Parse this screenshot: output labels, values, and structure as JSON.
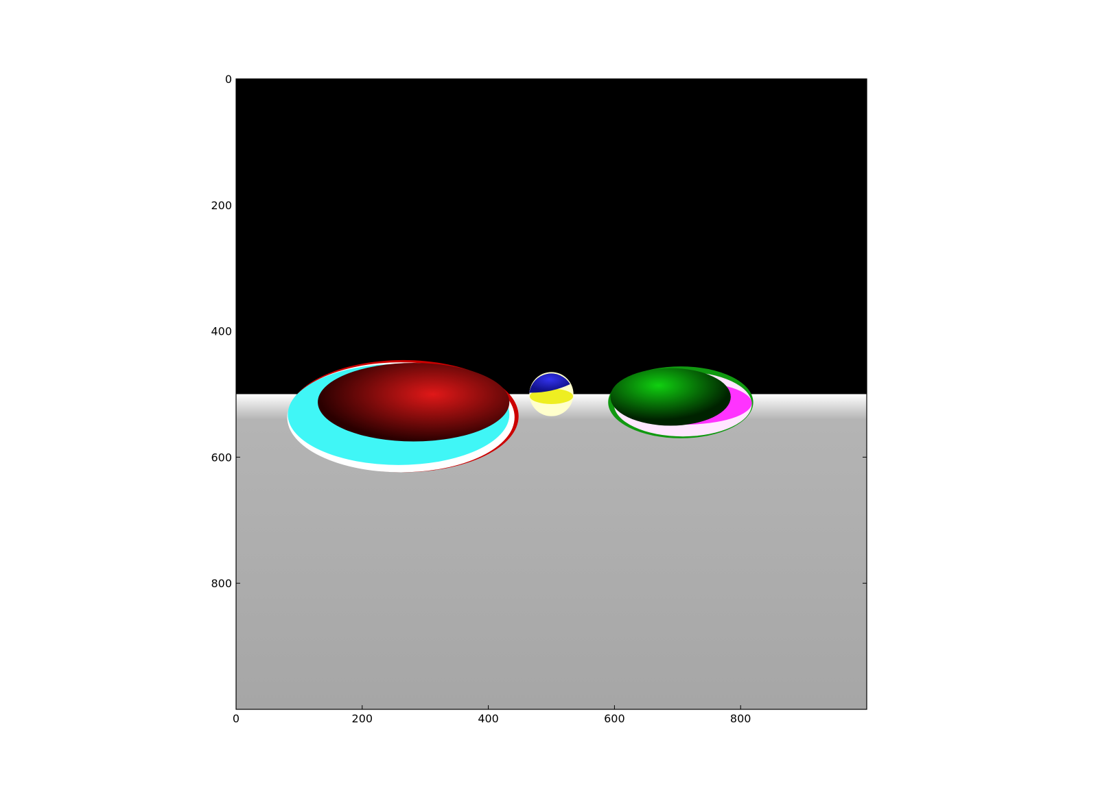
{
  "chart_data": {
    "type": "heatmap",
    "title": "",
    "xlabel": "",
    "ylabel": "",
    "xlim": [
      0,
      1000
    ],
    "ylim": [
      1000,
      0
    ],
    "y_axis_inverted": true,
    "grid": false,
    "x_ticks": [
      0,
      200,
      400,
      600,
      800
    ],
    "y_ticks": [
      0,
      200,
      400,
      600,
      800
    ],
    "x_tick_labels": [
      "0",
      "200",
      "400",
      "600",
      "800"
    ],
    "y_tick_labels": [
      "0",
      "200",
      "400",
      "600",
      "800"
    ],
    "image": {
      "horizon_y": 500,
      "sky_color": "#000000",
      "floor_top_color": "#ffffff",
      "floor_color": "#a6a6a6",
      "objects": [
        {
          "name": "red-sphere",
          "center": [
            265,
            535
          ],
          "radii": [
            183,
            89
          ],
          "body_color": "#e01818",
          "shadow_color": "#2a0000",
          "reflection_colors": [
            "#40f6f6",
            "#ffffff",
            "#cc0000"
          ]
        },
        {
          "name": "small-sphere",
          "center": [
            500,
            500
          ],
          "radii": [
            35,
            35
          ],
          "body_color": "#2222dd",
          "reflection_colors": [
            "#eeee22",
            "#ffffcc"
          ]
        },
        {
          "name": "green-sphere",
          "center": [
            705,
            513
          ],
          "radii": [
            115,
            57
          ],
          "body_color": "#10d010",
          "shadow_color": "#002200",
          "reflection_colors": [
            "#ff33ff",
            "#ffe6ff",
            "#119911"
          ]
        }
      ]
    }
  }
}
